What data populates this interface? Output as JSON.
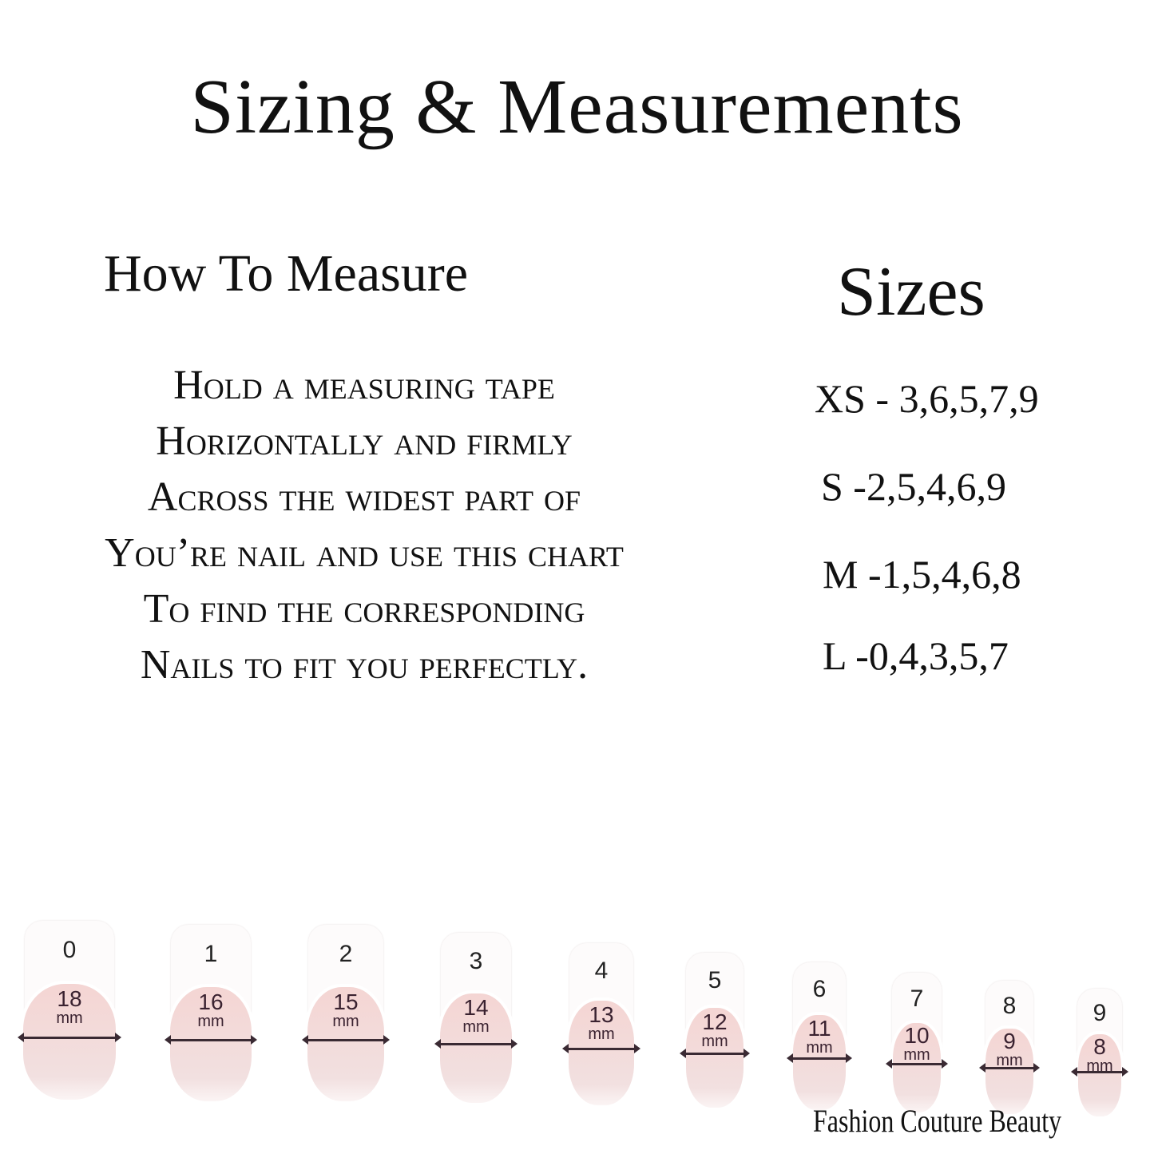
{
  "title": "Sizing & Measurements",
  "how_to": {
    "heading": "How To Measure",
    "lines": [
      "Hold a measuring tape",
      "Horizontally and firmly",
      "Across the widest part of",
      "You’re nail and use this chart",
      "To find the corresponding",
      "Nails to fit you perfectly."
    ]
  },
  "sizes": {
    "heading": "Sizes",
    "rows": [
      "XS - 3,6,5,7,9",
      "S -2,5,4,6,9",
      "M -1,5,4,6,8",
      "L -0,4,3,5,7"
    ]
  },
  "nails": [
    {
      "number": "0",
      "width": "18",
      "unit": "mm"
    },
    {
      "number": "1",
      "width": "16",
      "unit": "mm"
    },
    {
      "number": "2",
      "width": "15",
      "unit": "mm"
    },
    {
      "number": "3",
      "width": "14",
      "unit": "mm"
    },
    {
      "number": "4",
      "width": "13",
      "unit": "mm"
    },
    {
      "number": "5",
      "width": "12",
      "unit": "mm"
    },
    {
      "number": "6",
      "width": "11",
      "unit": "mm"
    },
    {
      "number": "7",
      "width": "10",
      "unit": "mm"
    },
    {
      "number": "8",
      "width": "9",
      "unit": "mm"
    },
    {
      "number": "9",
      "width": "8",
      "unit": "mm"
    }
  ],
  "brand": "Fashion Couture Beauty"
}
